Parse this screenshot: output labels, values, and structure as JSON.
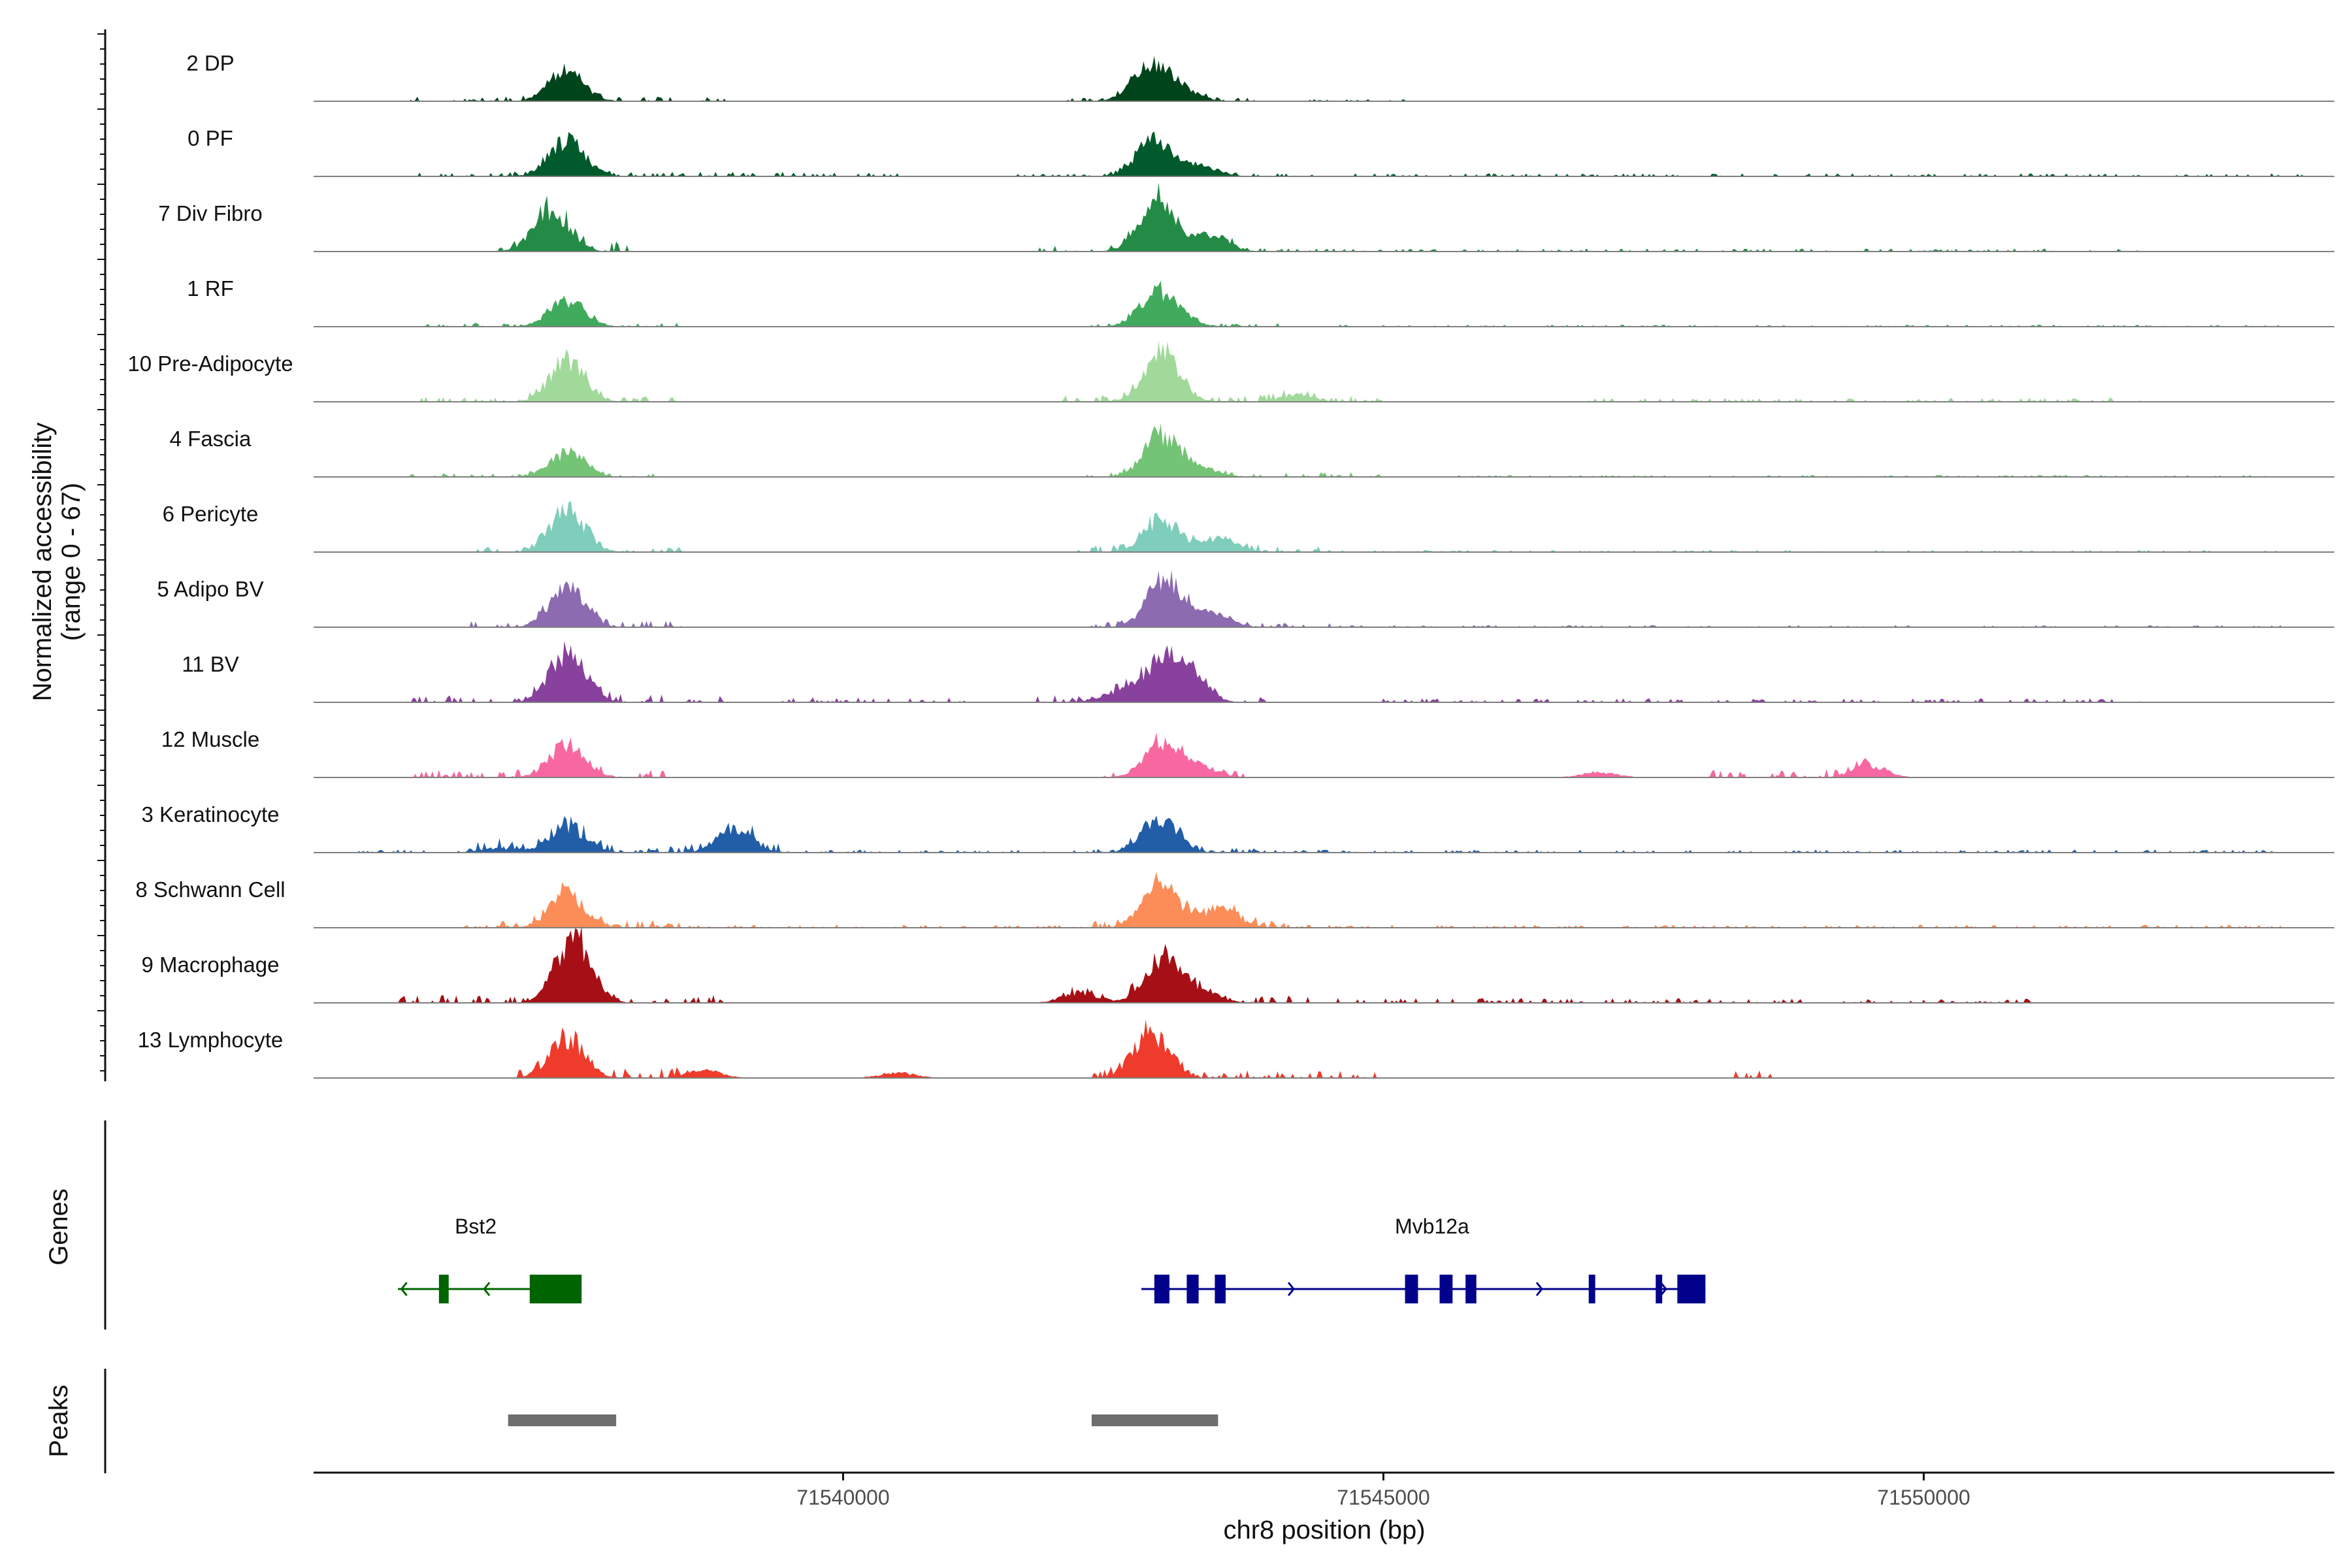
{
  "chart_data": {
    "type": "area",
    "title": "",
    "xlabel": "chr8 position (bp)",
    "ylabel_line1": "Normalized accessibility",
    "ylabel_line2": "(range 0 - 67)",
    "ylim": [
      0,
      67
    ],
    "xlim": [
      71535100,
      71553800
    ],
    "x_ticks": [
      71540000,
      71545000,
      71550000
    ],
    "x_tick_labels": [
      "71540000",
      "71545000",
      "71550000"
    ],
    "panel_labels": {
      "genes": "Genes",
      "peaks": "Peaks"
    },
    "tracks": [
      {
        "name": "2 DP",
        "color": "#00441b",
        "peaks": [
          [
            71537430,
            22
          ],
          [
            71542830,
            26
          ],
          [
            71543100,
            10
          ]
        ],
        "noise": [
          [
            71536000,
            71538900,
            1.8
          ],
          [
            71541900,
            71543800,
            1.5
          ],
          [
            71544300,
            71545200,
            0.8
          ]
        ]
      },
      {
        "name": "0 PF",
        "color": "#005a2b",
        "peaks": [
          [
            71537450,
            28
          ],
          [
            71542880,
            27
          ],
          [
            71543300,
            8
          ]
        ],
        "noise": [
          [
            71536000,
            71540500,
            1.8
          ],
          [
            71541600,
            71553500,
            1.2
          ]
        ]
      },
      {
        "name": "7 Div Fibro",
        "color": "#238b45",
        "peaks": [
          [
            71537300,
            32
          ],
          [
            71542900,
            38
          ],
          [
            71543400,
            12
          ]
        ],
        "noise": [
          [
            71536800,
            71538000,
            4
          ],
          [
            71541800,
            71543900,
            2.2
          ],
          [
            71544000,
            71552000,
            1.2
          ]
        ]
      },
      {
        "name": "1 RF",
        "color": "#41ab5d",
        "peaks": [
          [
            71537450,
            20
          ],
          [
            71542900,
            24
          ],
          [
            71543100,
            6
          ]
        ],
        "noise": [
          [
            71536000,
            71538500,
            1.5
          ],
          [
            71542300,
            71544200,
            1.5
          ],
          [
            71544500,
            71553300,
            0.8
          ]
        ]
      },
      {
        "name": "10 Pre-Adipocyte",
        "color": "#a1d99b",
        "peaks": [
          [
            71537450,
            30
          ],
          [
            71542950,
            36
          ],
          [
            71544200,
            5
          ]
        ],
        "noise": [
          [
            71536000,
            71538500,
            2
          ],
          [
            71541800,
            71545000,
            2.5
          ],
          [
            71546800,
            71552000,
            1.5
          ]
        ]
      },
      {
        "name": "4 Fascia",
        "color": "#74c476",
        "peaks": [
          [
            71537450,
            18
          ],
          [
            71542950,
            32
          ],
          [
            71543300,
            6
          ]
        ],
        "noise": [
          [
            71536000,
            71538500,
            1.5
          ],
          [
            71542200,
            71545000,
            1.8
          ],
          [
            71545500,
            71553300,
            0.8
          ]
        ]
      },
      {
        "name": "6 Pericyte",
        "color": "#7fcdbb",
        "peaks": [
          [
            71537450,
            32
          ],
          [
            71542950,
            25
          ],
          [
            71543500,
            10
          ]
        ],
        "noise": [
          [
            71536500,
            71538500,
            2
          ],
          [
            71542100,
            71544500,
            2.5
          ],
          [
            71544600,
            71553300,
            0.8
          ]
        ]
      },
      {
        "name": "5 Adipo BV",
        "color": "#8c6bb1",
        "peaks": [
          [
            71537450,
            30
          ],
          [
            71542980,
            36
          ],
          [
            71543400,
            10
          ]
        ],
        "noise": [
          [
            71536500,
            71538500,
            2.5
          ],
          [
            71542300,
            71544500,
            2
          ],
          [
            71544600,
            71553300,
            0.8
          ]
        ]
      },
      {
        "name": "11 BV",
        "color": "#88419d",
        "peaks": [
          [
            71537450,
            40
          ],
          [
            71542950,
            29
          ],
          [
            71543200,
            20
          ],
          [
            71542550,
            8
          ]
        ],
        "noise": [
          [
            71536000,
            71538900,
            3
          ],
          [
            71539400,
            71541300,
            2
          ],
          [
            71541800,
            71544000,
            3
          ],
          [
            71545000,
            71552000,
            1.5
          ]
        ]
      },
      {
        "name": "12 Muscle",
        "color": "#f768a1",
        "peaks": [
          [
            71537450,
            26
          ],
          [
            71542950,
            25
          ],
          [
            71543300,
            8
          ],
          [
            71549500,
            9
          ],
          [
            71547000,
            4
          ]
        ],
        "noise": [
          [
            71536000,
            71538500,
            3
          ],
          [
            71542200,
            71543700,
            2
          ],
          [
            71548000,
            71549500,
            3
          ]
        ]
      },
      {
        "name": "3 Keratinocyte",
        "color": "#225ea8",
        "peaks": [
          [
            71537450,
            20
          ],
          [
            71539000,
            18
          ],
          [
            71542930,
            25
          ],
          [
            71536800,
            3
          ]
        ],
        "noise": [
          [
            71535500,
            71553300,
            1.2
          ],
          [
            71536600,
            71539500,
            3
          ],
          [
            71542300,
            71544000,
            2
          ]
        ]
      },
      {
        "name": "8 Schwann Cell",
        "color": "#fc8d59",
        "peaks": [
          [
            71537450,
            24
          ],
          [
            71542950,
            33
          ],
          [
            71543500,
            14
          ]
        ],
        "noise": [
          [
            71536500,
            71553300,
            1.2
          ],
          [
            71542300,
            71544200,
            3
          ],
          [
            71536800,
            71538500,
            3
          ]
        ]
      },
      {
        "name": "9 Macrophage",
        "color": "#a50f15",
        "peaks": [
          [
            71537500,
            48
          ],
          [
            71542950,
            35
          ],
          [
            71543300,
            10
          ],
          [
            71542200,
            8
          ]
        ],
        "noise": [
          [
            71535900,
            71538900,
            3
          ],
          [
            71542000,
            71544300,
            3
          ],
          [
            71544500,
            71551000,
            1.8
          ]
        ]
      },
      {
        "name": "13 Lymphocyte",
        "color": "#ef3b2c",
        "peaks": [
          [
            71537450,
            30
          ],
          [
            71542850,
            36
          ],
          [
            71538700,
            6
          ],
          [
            71540500,
            4
          ]
        ],
        "noise": [
          [
            71537000,
            71538600,
            4
          ],
          [
            71542200,
            71545000,
            3
          ],
          [
            71548200,
            71548600,
            3
          ]
        ]
      }
    ],
    "genes": [
      {
        "name": "Bst2",
        "strand": "-",
        "color": "#006400",
        "start": 71535880,
        "end": 71537580,
        "label_x": 71536600,
        "exons": [
          [
            71536260,
            71536350
          ],
          [
            71537100,
            71537580
          ]
        ]
      },
      {
        "name": "Mvb12a",
        "strand": "+",
        "color": "#00008b",
        "start": 71542760,
        "end": 71547980,
        "label_x": 71545450,
        "exons": [
          [
            71542880,
            71543020
          ],
          [
            71543180,
            71543290
          ],
          [
            71543440,
            71543540
          ],
          [
            71545200,
            71545320
          ],
          [
            71545520,
            71545640
          ],
          [
            71545760,
            71545860
          ],
          [
            71546900,
            71546960
          ],
          [
            71547520,
            71547580
          ],
          [
            71547720,
            71547980
          ]
        ]
      }
    ],
    "peaks": [
      {
        "start": 71536900,
        "end": 71537900
      },
      {
        "start": 71542300,
        "end": 71543470
      }
    ]
  }
}
